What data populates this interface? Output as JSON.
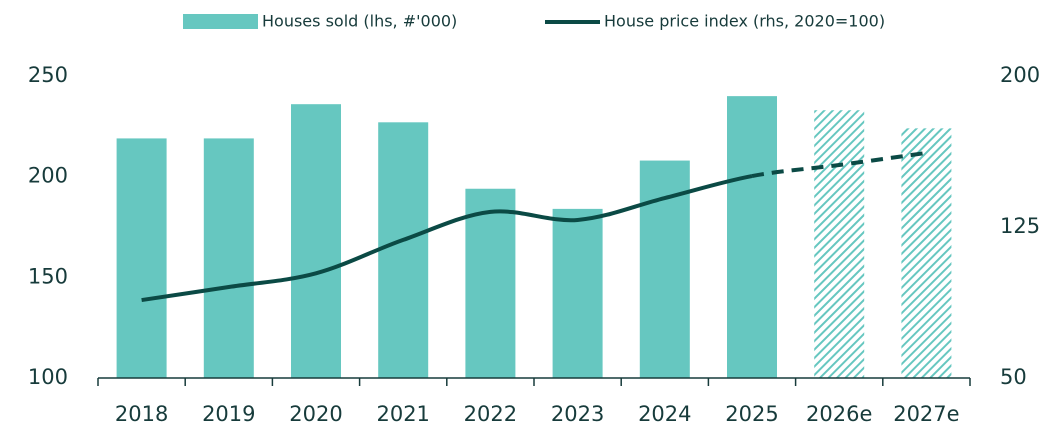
{
  "chart_data": {
    "type": "bar_line",
    "categories": [
      "2018",
      "2019",
      "2020",
      "2021",
      "2022",
      "2023",
      "2024",
      "2025",
      "2026e",
      "2027e"
    ],
    "series": [
      {
        "name": "Houses sold (lhs, #'000)",
        "type": "bar",
        "color": "#66c7c0",
        "axis": "y",
        "values": [
          219,
          219,
          236,
          227,
          194,
          184,
          208,
          240,
          233,
          224
        ],
        "hatched": [
          false,
          false,
          false,
          false,
          false,
          false,
          false,
          false,
          true,
          true
        ]
      },
      {
        "name": "House price index (rhs, 2020=100)",
        "type": "line",
        "color": "#0b4a45",
        "axis": "y2",
        "values": [
          88.7,
          95.2,
          102,
          118.6,
          132.5,
          128.5,
          139.4,
          150.3,
          155.8,
          161.8
        ],
        "dashed": [
          false,
          false,
          false,
          false,
          false,
          false,
          false,
          false,
          true,
          true
        ]
      }
    ],
    "ylim": [
      100,
      250
    ],
    "yticks": [
      100,
      150,
      200,
      250
    ],
    "y2lim": [
      50,
      200
    ],
    "y2ticks": [
      50,
      125,
      200
    ]
  }
}
